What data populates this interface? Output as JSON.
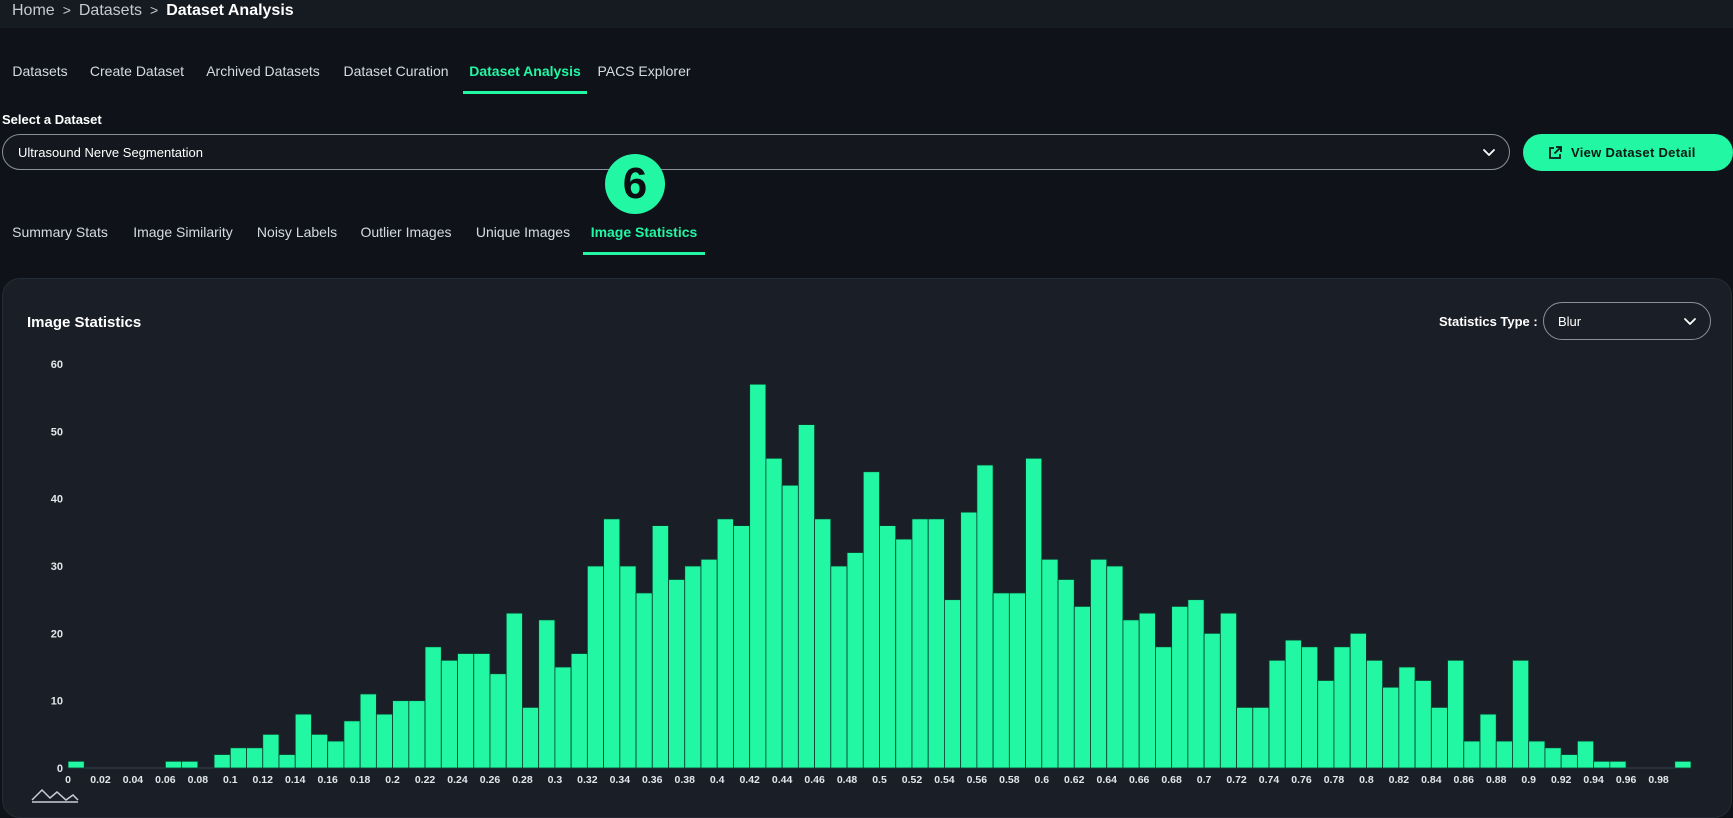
{
  "breadcrumb": {
    "items": [
      "Home",
      "Datasets"
    ],
    "separator": ">",
    "current": "Dataset Analysis"
  },
  "main_tabs": [
    {
      "label": "Datasets",
      "active": false
    },
    {
      "label": "Create Dataset",
      "active": false
    },
    {
      "label": "Archived Datasets",
      "active": false
    },
    {
      "label": "Dataset Curation",
      "active": false
    },
    {
      "label": "Dataset Analysis",
      "active": true
    },
    {
      "label": "PACS Explorer",
      "active": false
    }
  ],
  "dataset_select": {
    "label": "Select a Dataset",
    "value": "Ultrasound Nerve Segmentation",
    "icon": "chevron-down-icon"
  },
  "view_button": {
    "label": "View Dataset Detail",
    "icon": "external-link-icon"
  },
  "step_badge": "6",
  "analysis_tabs": [
    {
      "label": "Summary Stats",
      "active": false
    },
    {
      "label": "Image Similarity",
      "active": false
    },
    {
      "label": "Noisy Labels",
      "active": false
    },
    {
      "label": "Outlier Images",
      "active": false
    },
    {
      "label": "Unique Images",
      "active": false
    },
    {
      "label": "Image Statistics",
      "active": true
    }
  ],
  "panel": {
    "title": "Image Statistics",
    "stat_type_label": "Statistics Type :",
    "stat_type_value": "Blur"
  },
  "colors": {
    "accent": "#22f7a4",
    "background": "#0f1319",
    "panel": "#1a1e26",
    "bar_outline": "#0c3a2a"
  },
  "chart_data": {
    "type": "bar",
    "title": "",
    "xlabel": "",
    "ylabel": "",
    "ylim": [
      0,
      60
    ],
    "yticks": [
      0,
      10,
      20,
      30,
      40,
      50,
      60
    ],
    "xlim": [
      0,
      1
    ],
    "bin_width": 0.01,
    "xticks": [
      "0",
      "0.02",
      "0.04",
      "0.06",
      "0.08",
      "0.1",
      "0.12",
      "0.14",
      "0.16",
      "0.18",
      "0.2",
      "0.22",
      "0.24",
      "0.26",
      "0.28",
      "0.3",
      "0.32",
      "0.34",
      "0.36",
      "0.38",
      "0.4",
      "0.42",
      "0.44",
      "0.46",
      "0.48",
      "0.5",
      "0.52",
      "0.54",
      "0.56",
      "0.58",
      "0.6",
      "0.62",
      "0.64",
      "0.66",
      "0.68",
      "0.7",
      "0.72",
      "0.74",
      "0.76",
      "0.78",
      "0.8",
      "0.82",
      "0.84",
      "0.86",
      "0.88",
      "0.9",
      "0.92",
      "0.94",
      "0.96",
      "0.98"
    ],
    "values": [
      1,
      0,
      0,
      0,
      0,
      0,
      1,
      1,
      0,
      2,
      3,
      3,
      5,
      2,
      8,
      5,
      4,
      7,
      11,
      8,
      10,
      10,
      18,
      16,
      17,
      17,
      14,
      23,
      9,
      22,
      15,
      17,
      30,
      37,
      30,
      26,
      36,
      28,
      30,
      31,
      37,
      36,
      57,
      46,
      42,
      51,
      37,
      30,
      32,
      44,
      36,
      34,
      37,
      37,
      25,
      38,
      45,
      26,
      26,
      46,
      31,
      28,
      24,
      31,
      30,
      22,
      23,
      18,
      24,
      25,
      20,
      23,
      9,
      9,
      16,
      19,
      18,
      13,
      18,
      20,
      16,
      12,
      15,
      13,
      9,
      16,
      4,
      8,
      4,
      16,
      4,
      3,
      2,
      4,
      1,
      1,
      0,
      0,
      0,
      1
    ],
    "grid": false,
    "legend": "none",
    "toolbar_icon": "histogram-icon"
  }
}
